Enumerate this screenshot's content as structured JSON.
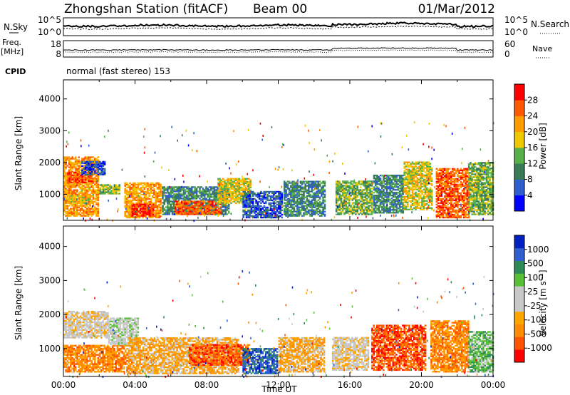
{
  "header": {
    "station": "Zhongshan Station (fitACF)",
    "beam": "Beam 00",
    "date": "01/Mar/2012",
    "mode": "normal (fast stereo) 153",
    "cpid_label": "CPID"
  },
  "top_panel": {
    "left_label": "N.Sky",
    "right_label": "N.Search",
    "left_ticks": [
      "10^5",
      "10^0"
    ],
    "right_ticks": [
      "10^5",
      "10^0"
    ]
  },
  "freq_panel": {
    "left_label_line1": "Freq.",
    "left_label_line2": "[MHz]",
    "right_label": "Nave",
    "left_ticks": [
      "18",
      "8"
    ],
    "right_ticks": [
      "60",
      "0"
    ]
  },
  "colors": {
    "power": [
      "#0000ff",
      "#2f5fd0",
      "#3a7a58",
      "#58b04a",
      "#f0c800",
      "#ff9a00",
      "#ff5a00",
      "#ff0000"
    ],
    "velocity": [
      "#ff0000",
      "#ff5500",
      "#ff8c00",
      "#ffa500",
      "#c8c8c8",
      "#c8c8c8",
      "#59c036",
      "#2e8b57",
      "#2f5fd0",
      "#0020c0"
    ]
  },
  "chart_data": [
    {
      "type": "heatmap",
      "title": "Power",
      "xlabel": "",
      "ylabel": "Slant Range [km]",
      "xlim": [
        0,
        24
      ],
      "ylim": [
        180,
        4600
      ],
      "yticks": [
        "1000",
        "2000",
        "3000",
        "4000"
      ],
      "colorbar_label": "Power [dB]",
      "colorbar_ticks": [
        "4",
        "8",
        "12",
        "16",
        "20",
        "24",
        "28"
      ],
      "regions": [
        {
          "t0": 0.0,
          "t1": 1.9,
          "r0": 300,
          "r1": 2150,
          "level": 5
        },
        {
          "t0": 0.2,
          "t1": 1.6,
          "r0": 1350,
          "r1": 1700,
          "level": 6
        },
        {
          "t0": 0.3,
          "t1": 1.5,
          "r0": 700,
          "r1": 950,
          "level": 4
        },
        {
          "t0": 1.0,
          "t1": 2.3,
          "r0": 1600,
          "r1": 2050,
          "level": 1
        },
        {
          "t0": 2.0,
          "t1": 3.1,
          "r0": 1000,
          "r1": 1300,
          "level": 3
        },
        {
          "t0": 3.4,
          "t1": 5.4,
          "r0": 250,
          "r1": 1350,
          "level": 5
        },
        {
          "t0": 3.8,
          "t1": 5.0,
          "r0": 300,
          "r1": 700,
          "level": 7
        },
        {
          "t0": 5.5,
          "t1": 9.2,
          "r0": 350,
          "r1": 1250,
          "level": 2
        },
        {
          "t0": 6.2,
          "t1": 8.8,
          "r0": 350,
          "r1": 800,
          "level": 6
        },
        {
          "t0": 8.6,
          "t1": 10.4,
          "r0": 700,
          "r1": 1500,
          "level": 4
        },
        {
          "t0": 10.0,
          "t1": 12.2,
          "r0": 250,
          "r1": 1100,
          "level": 1
        },
        {
          "t0": 12.3,
          "t1": 14.6,
          "r0": 300,
          "r1": 1400,
          "level": 2
        },
        {
          "t0": 15.2,
          "t1": 17.2,
          "r0": 350,
          "r1": 1400,
          "level": 3
        },
        {
          "t0": 17.3,
          "t1": 19.0,
          "r0": 400,
          "r1": 1600,
          "level": 2
        },
        {
          "t0": 19.0,
          "t1": 20.6,
          "r0": 500,
          "r1": 2000,
          "level": 4
        },
        {
          "t0": 20.8,
          "t1": 22.6,
          "r0": 250,
          "r1": 1800,
          "level": 6
        },
        {
          "t0": 22.6,
          "t1": 24.0,
          "r0": 350,
          "r1": 2000,
          "level": 3
        }
      ]
    },
    {
      "type": "heatmap",
      "title": "Velocity",
      "xlabel": "Time UT",
      "ylabel": "Slant Range [km]",
      "xlim": [
        0,
        24
      ],
      "ylim": [
        180,
        4600
      ],
      "xticks": [
        "00:00",
        "04:00",
        "08:00",
        "12:00",
        "16:00",
        "20:00",
        "00:00"
      ],
      "yticks": [
        "1000",
        "2000",
        "3000",
        "4000"
      ],
      "colorbar_label": "Velocity [m s⁻¹]",
      "colorbar_ticks": [
        "1000",
        "500",
        "100",
        "25",
        "-25",
        "-100",
        "-500",
        "-1000"
      ],
      "regions": [
        {
          "t0": 0.0,
          "t1": 2.5,
          "r0": 1300,
          "r1": 2100,
          "level": 4
        },
        {
          "t0": 0.0,
          "t1": 3.8,
          "r0": 300,
          "r1": 1100,
          "level": 2
        },
        {
          "t0": 2.5,
          "t1": 4.2,
          "r0": 1100,
          "r1": 1900,
          "level": 5
        },
        {
          "t0": 3.6,
          "t1": 9.8,
          "r0": 250,
          "r1": 1300,
          "level": 3
        },
        {
          "t0": 7.0,
          "t1": 10.4,
          "r0": 500,
          "r1": 1100,
          "level": 1
        },
        {
          "t0": 10.0,
          "t1": 11.9,
          "r0": 250,
          "r1": 1000,
          "level": 8
        },
        {
          "t0": 12.0,
          "t1": 14.6,
          "r0": 300,
          "r1": 1300,
          "level": 3
        },
        {
          "t0": 15.0,
          "t1": 17.0,
          "r0": 350,
          "r1": 1300,
          "level": 4
        },
        {
          "t0": 17.2,
          "t1": 20.2,
          "r0": 350,
          "r1": 1700,
          "level": 1
        },
        {
          "t0": 20.5,
          "t1": 22.6,
          "r0": 300,
          "r1": 1800,
          "level": 2
        },
        {
          "t0": 22.6,
          "t1": 24.0,
          "r0": 300,
          "r1": 1500,
          "level": 6
        }
      ]
    }
  ]
}
